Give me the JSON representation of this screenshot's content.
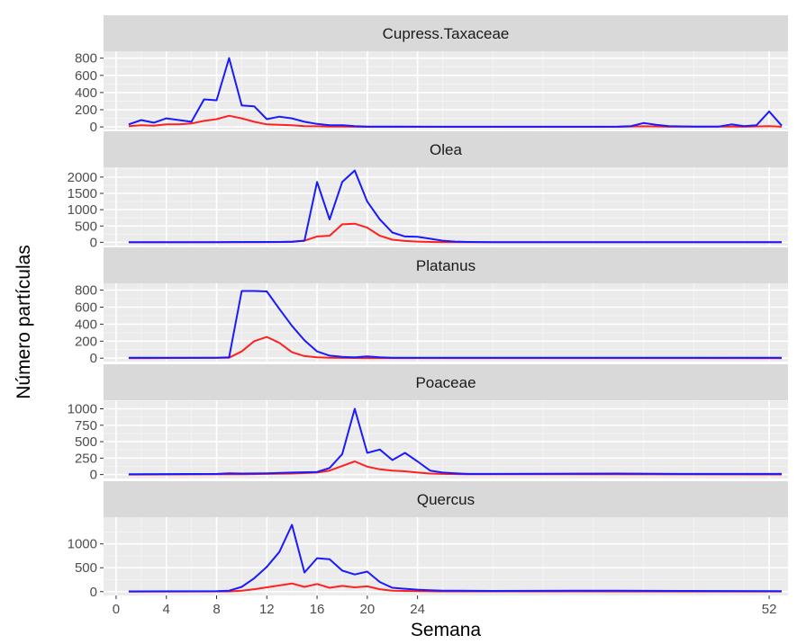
{
  "chart_data": {
    "type": "line",
    "xlabel": "Semana",
    "ylabel": "Número partículas",
    "x_ticks": [
      0,
      4,
      8,
      12,
      16,
      20,
      24,
      52
    ],
    "x_range": [
      -1,
      53.5
    ],
    "colors": {
      "upper": "#1a1aff",
      "lower": "#ff2020"
    },
    "grid": true,
    "legend": "none",
    "panels": [
      {
        "name": "Cupress.Taxaceae",
        "ylim": [
          -30,
          880
        ],
        "y_ticks": [
          0,
          200,
          400,
          600,
          800
        ],
        "series": [
          {
            "points": [
              [
                1,
                30
              ],
              [
                2,
                80
              ],
              [
                3,
                50
              ],
              [
                4,
                100
              ],
              [
                5,
                80
              ],
              [
                6,
                60
              ],
              [
                7,
                320
              ],
              [
                8,
                310
              ],
              [
                9,
                800
              ],
              [
                10,
                250
              ],
              [
                11,
                240
              ],
              [
                12,
                90
              ],
              [
                13,
                120
              ],
              [
                14,
                100
              ],
              [
                15,
                60
              ],
              [
                16,
                35
              ],
              [
                17,
                20
              ],
              [
                18,
                20
              ],
              [
                19,
                10
              ],
              [
                20,
                5
              ],
              [
                22,
                3
              ],
              [
                26,
                2
              ],
              [
                30,
                2
              ],
              [
                35,
                2
              ],
              [
                40,
                5
              ],
              [
                41,
                10
              ],
              [
                42,
                45
              ],
              [
                43,
                25
              ],
              [
                44,
                10
              ],
              [
                46,
                5
              ],
              [
                48,
                5
              ],
              [
                49,
                30
              ],
              [
                50,
                10
              ],
              [
                51,
                20
              ],
              [
                52,
                180
              ],
              [
                53,
                15
              ]
            ]
          },
          {
            "points": [
              [
                1,
                10
              ],
              [
                2,
                20
              ],
              [
                3,
                15
              ],
              [
                4,
                30
              ],
              [
                5,
                30
              ],
              [
                6,
                40
              ],
              [
                7,
                70
              ],
              [
                8,
                90
              ],
              [
                9,
                130
              ],
              [
                10,
                100
              ],
              [
                11,
                60
              ],
              [
                12,
                30
              ],
              [
                13,
                25
              ],
              [
                14,
                20
              ],
              [
                15,
                10
              ],
              [
                16,
                8
              ],
              [
                17,
                5
              ],
              [
                18,
                3
              ],
              [
                19,
                2
              ],
              [
                20,
                1
              ],
              [
                25,
                1
              ],
              [
                40,
                1
              ],
              [
                42,
                8
              ],
              [
                44,
                2
              ],
              [
                49,
                5
              ],
              [
                50,
                2
              ],
              [
                52,
                10
              ],
              [
                53,
                2
              ]
            ]
          }
        ]
      },
      {
        "name": "Olea",
        "ylim": [
          -100,
          2300
        ],
        "y_ticks": [
          0,
          500,
          1000,
          1500,
          2000
        ],
        "series": [
          {
            "points": [
              [
                1,
                5
              ],
              [
                4,
                5
              ],
              [
                8,
                5
              ],
              [
                12,
                10
              ],
              [
                13,
                10
              ],
              [
                14,
                20
              ],
              [
                15,
                50
              ],
              [
                16,
                1850
              ],
              [
                17,
                700
              ],
              [
                18,
                1850
              ],
              [
                19,
                2200
              ],
              [
                20,
                1250
              ],
              [
                21,
                700
              ],
              [
                22,
                300
              ],
              [
                23,
                180
              ],
              [
                24,
                170
              ],
              [
                25,
                110
              ],
              [
                26,
                50
              ],
              [
                27,
                20
              ],
              [
                28,
                10
              ],
              [
                30,
                5
              ],
              [
                40,
                5
              ],
              [
                53,
                5
              ]
            ]
          },
          {
            "points": [
              [
                1,
                0
              ],
              [
                12,
                5
              ],
              [
                14,
                10
              ],
              [
                15,
                50
              ],
              [
                16,
                180
              ],
              [
                17,
                200
              ],
              [
                18,
                550
              ],
              [
                19,
                570
              ],
              [
                20,
                450
              ],
              [
                21,
                200
              ],
              [
                22,
                80
              ],
              [
                23,
                40
              ],
              [
                24,
                20
              ],
              [
                25,
                10
              ],
              [
                26,
                5
              ],
              [
                28,
                2
              ],
              [
                53,
                1
              ]
            ]
          }
        ]
      },
      {
        "name": "Platanus",
        "ylim": [
          -40,
          880
        ],
        "y_ticks": [
          0,
          200,
          400,
          600,
          800
        ],
        "series": [
          {
            "points": [
              [
                1,
                5
              ],
              [
                8,
                5
              ],
              [
                9,
                10
              ],
              [
                10,
                790
              ],
              [
                11,
                790
              ],
              [
                12,
                785
              ],
              [
                13,
                580
              ],
              [
                14,
                380
              ],
              [
                15,
                210
              ],
              [
                16,
                80
              ],
              [
                17,
                30
              ],
              [
                18,
                15
              ],
              [
                19,
                10
              ],
              [
                20,
                20
              ],
              [
                21,
                10
              ],
              [
                22,
                5
              ],
              [
                30,
                5
              ],
              [
                40,
                5
              ],
              [
                53,
                5
              ]
            ]
          },
          {
            "points": [
              [
                1,
                0
              ],
              [
                9,
                5
              ],
              [
                10,
                80
              ],
              [
                11,
                200
              ],
              [
                12,
                250
              ],
              [
                13,
                180
              ],
              [
                14,
                70
              ],
              [
                15,
                25
              ],
              [
                16,
                10
              ],
              [
                17,
                5
              ],
              [
                18,
                3
              ],
              [
                20,
                1
              ],
              [
                53,
                0
              ]
            ]
          }
        ]
      },
      {
        "name": "Poaceae",
        "ylim": [
          -60,
          1130
        ],
        "y_ticks": [
          0,
          250,
          500,
          750,
          1000
        ],
        "series": [
          {
            "points": [
              [
                1,
                5
              ],
              [
                8,
                10
              ],
              [
                9,
                20
              ],
              [
                10,
                15
              ],
              [
                12,
                20
              ],
              [
                14,
                30
              ],
              [
                16,
                40
              ],
              [
                17,
                100
              ],
              [
                18,
                310
              ],
              [
                19,
                1000
              ],
              [
                20,
                330
              ],
              [
                21,
                380
              ],
              [
                22,
                220
              ],
              [
                23,
                330
              ],
              [
                24,
                200
              ],
              [
                25,
                60
              ],
              [
                26,
                30
              ],
              [
                27,
                20
              ],
              [
                28,
                10
              ],
              [
                30,
                10
              ],
              [
                40,
                15
              ],
              [
                45,
                10
              ],
              [
                53,
                10
              ]
            ]
          },
          {
            "points": [
              [
                1,
                0
              ],
              [
                10,
                5
              ],
              [
                14,
                15
              ],
              [
                16,
                30
              ],
              [
                17,
                60
              ],
              [
                18,
                130
              ],
              [
                19,
                200
              ],
              [
                20,
                120
              ],
              [
                21,
                80
              ],
              [
                22,
                60
              ],
              [
                23,
                50
              ],
              [
                24,
                30
              ],
              [
                25,
                15
              ],
              [
                26,
                10
              ],
              [
                28,
                5
              ],
              [
                53,
                2
              ]
            ]
          }
        ]
      },
      {
        "name": "Quercus",
        "ylim": [
          -80,
          1560
        ],
        "y_ticks": [
          0,
          500,
          1000
        ],
        "series": [
          {
            "points": [
              [
                1,
                5
              ],
              [
                8,
                10
              ],
              [
                9,
                20
              ],
              [
                10,
                100
              ],
              [
                11,
                280
              ],
              [
                12,
                520
              ],
              [
                13,
                830
              ],
              [
                14,
                1400
              ],
              [
                15,
                400
              ],
              [
                16,
                700
              ],
              [
                17,
                680
              ],
              [
                18,
                440
              ],
              [
                19,
                360
              ],
              [
                20,
                420
              ],
              [
                21,
                200
              ],
              [
                22,
                80
              ],
              [
                23,
                60
              ],
              [
                24,
                40
              ],
              [
                25,
                30
              ],
              [
                26,
                20
              ],
              [
                30,
                15
              ],
              [
                40,
                20
              ],
              [
                45,
                15
              ],
              [
                53,
                10
              ]
            ]
          },
          {
            "points": [
              [
                1,
                0
              ],
              [
                9,
                5
              ],
              [
                10,
                20
              ],
              [
                11,
                50
              ],
              [
                12,
                90
              ],
              [
                13,
                130
              ],
              [
                14,
                170
              ],
              [
                15,
                100
              ],
              [
                16,
                160
              ],
              [
                17,
                80
              ],
              [
                18,
                120
              ],
              [
                19,
                90
              ],
              [
                20,
                110
              ],
              [
                21,
                50
              ],
              [
                22,
                20
              ],
              [
                24,
                10
              ],
              [
                26,
                5
              ],
              [
                53,
                2
              ]
            ]
          }
        ]
      }
    ]
  }
}
